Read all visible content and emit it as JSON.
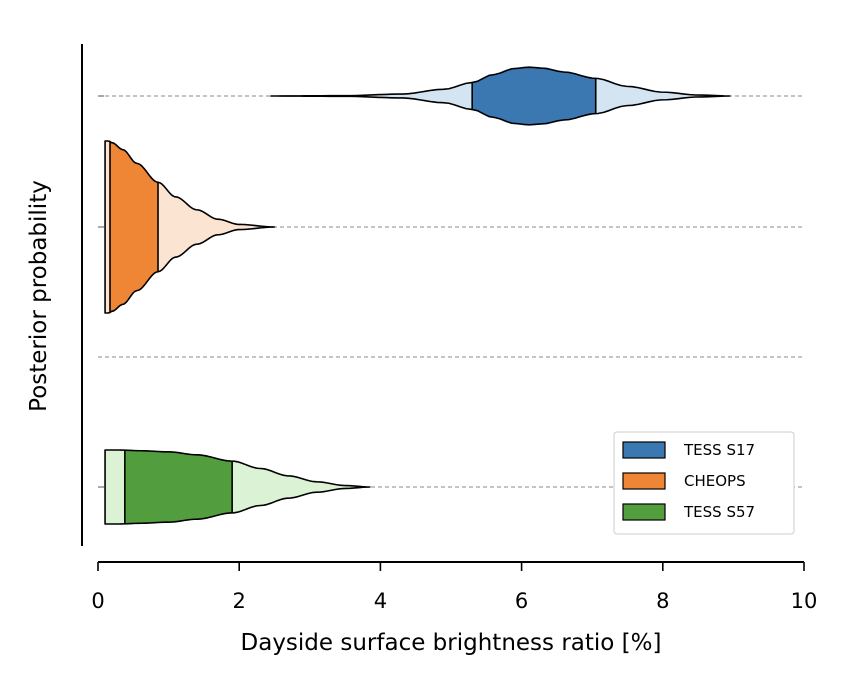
{
  "chart_data": {
    "type": "violin",
    "xlabel": "Dayside surface brightness ratio [%]",
    "ylabel": "Posterior probability",
    "xlim": [
      0,
      10
    ],
    "xticks": [
      "0",
      "2",
      "4",
      "6",
      "8",
      "10"
    ],
    "grid": "dashed horizontal baselines",
    "legend_position": "lower-right",
    "series": [
      {
        "name": "TESS S17",
        "color_dark": "#3b77b0",
        "color_light": "#d3e4f3",
        "range": [
          2.45,
          8.95
        ],
        "inner_interval": [
          5.3,
          7.05
        ],
        "profile": [
          [
            2.45,
            0.0
          ],
          [
            3.5,
            0.01
          ],
          [
            4.3,
            0.06
          ],
          [
            4.9,
            0.21
          ],
          [
            5.3,
            0.42
          ],
          [
            5.6,
            0.67
          ],
          [
            5.9,
            0.86
          ],
          [
            6.1,
            0.9
          ],
          [
            6.3,
            0.87
          ],
          [
            6.6,
            0.75
          ],
          [
            7.05,
            0.55
          ],
          [
            7.5,
            0.3
          ],
          [
            8.0,
            0.12
          ],
          [
            8.5,
            0.03
          ],
          [
            8.95,
            0.0
          ]
        ]
      },
      {
        "name": "CHEOPS",
        "color_dark": "#ef8636",
        "color_light": "#fce4d3",
        "range": [
          0.1,
          2.5
        ],
        "inner_interval": [
          0.17,
          0.85
        ],
        "profile": [
          [
            0.1,
            1.0
          ],
          [
            0.15,
            1.0
          ],
          [
            0.2,
            0.98
          ],
          [
            0.35,
            0.9
          ],
          [
            0.55,
            0.74
          ],
          [
            0.85,
            0.52
          ],
          [
            1.1,
            0.35
          ],
          [
            1.4,
            0.2
          ],
          [
            1.7,
            0.09
          ],
          [
            2.0,
            0.03
          ],
          [
            2.5,
            0.0
          ]
        ]
      },
      {
        "name": "TESS S57",
        "color_dark": "#529e3f",
        "color_light": "#dcf2d5",
        "range": [
          0.1,
          3.85
        ],
        "inner_interval": [
          0.38,
          1.9
        ],
        "profile": [
          [
            0.1,
            1.0
          ],
          [
            0.3,
            1.0
          ],
          [
            0.6,
            0.98
          ],
          [
            1.0,
            0.95
          ],
          [
            1.4,
            0.87
          ],
          [
            1.9,
            0.7
          ],
          [
            2.3,
            0.5
          ],
          [
            2.7,
            0.3
          ],
          [
            3.1,
            0.14
          ],
          [
            3.5,
            0.04
          ],
          [
            3.85,
            0.0
          ]
        ]
      }
    ],
    "empty_row": true
  }
}
